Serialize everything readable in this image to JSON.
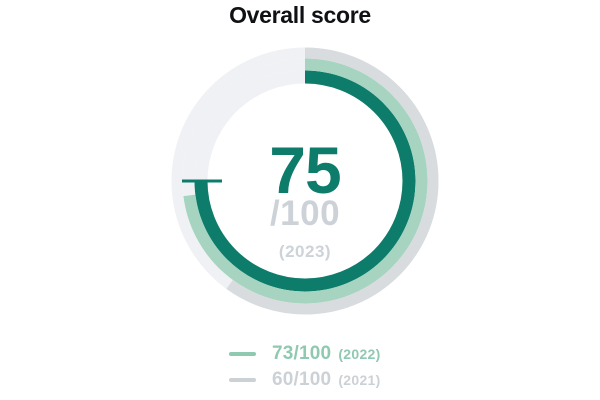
{
  "title": "Overall score",
  "colors": {
    "teal": "#0d7c6b",
    "mint": "#a6d4c0",
    "gray_ring": "#d8dcdf",
    "track": "#eff1f4",
    "score_secondary": "#cdd2d8",
    "legend_mint_text": "#8fc9b1",
    "legend_gray_text": "#ccd1d6",
    "title_color": "#101114"
  },
  "gauge": {
    "score": "75",
    "denominator": "/100",
    "year_label": "(2023)"
  },
  "legend": {
    "items": [
      {
        "value_label": "73/100",
        "year_label": "(2022)",
        "color": "#8fc9b1"
      },
      {
        "value_label": "60/100",
        "year_label": "(2021)",
        "color": "#ccd1d6"
      }
    ]
  },
  "chart_data": {
    "type": "pie",
    "subtype": "concentric-ring-gauge",
    "title": "Overall score",
    "max": 100,
    "start_angle": "top",
    "direction": "clockwise",
    "legend_position": "bottom",
    "center_labels": [
      "75",
      "/100",
      "(2023)"
    ],
    "marker": {
      "at_value": 75,
      "shape": "tick-line",
      "color": "#0d7c6b"
    },
    "series": [
      {
        "name": "2023",
        "value": 75,
        "display": "75/100",
        "color": "#0d7c6b",
        "ring": "inner",
        "track_color": "#eff1f4"
      },
      {
        "name": "2022",
        "value": 73,
        "display": "73/100",
        "color": "#a6d4c0",
        "ring": "middle",
        "track_color": "#eff1f4"
      },
      {
        "name": "2021",
        "value": 60,
        "display": "60/100",
        "color": "#d8dcdf",
        "ring": "outer",
        "track_color": "#eff1f4"
      }
    ]
  }
}
